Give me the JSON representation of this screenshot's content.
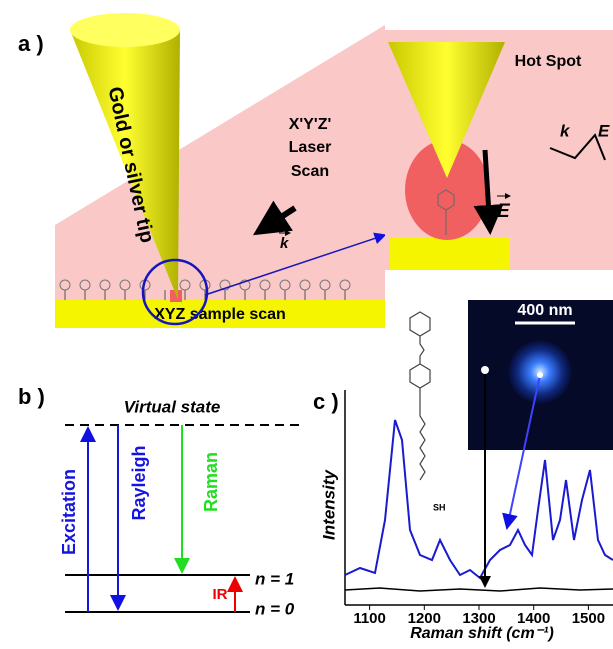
{
  "panel_a": {
    "label": "a )",
    "tip_label": "Gold or silver tip",
    "laser_scan": [
      "X'Y'Z'",
      "Laser",
      "Scan"
    ],
    "sample_scan": "XYZ sample scan",
    "k": "k",
    "hot_spot": "Hot Spot",
    "inset_k": "k",
    "inset_E": "E",
    "field_E": "E"
  },
  "panel_b": {
    "label": "b )",
    "virtual_state": "Virtual state",
    "excitation": "Excitation",
    "rayleigh": "Rayleigh",
    "raman": "Raman",
    "ir": "IR",
    "n1": "n = 1",
    "n0": "n = 0"
  },
  "panel_c": {
    "label": "c )",
    "y_label": "Intensity",
    "x_label": "Raman shift (cm⁻¹)",
    "scale_bar": "400 nm",
    "thiol": "SH",
    "xlim": [
      1055,
      1545
    ],
    "xticks": [
      1100,
      1200,
      1300,
      1400,
      1500
    ]
  }
}
